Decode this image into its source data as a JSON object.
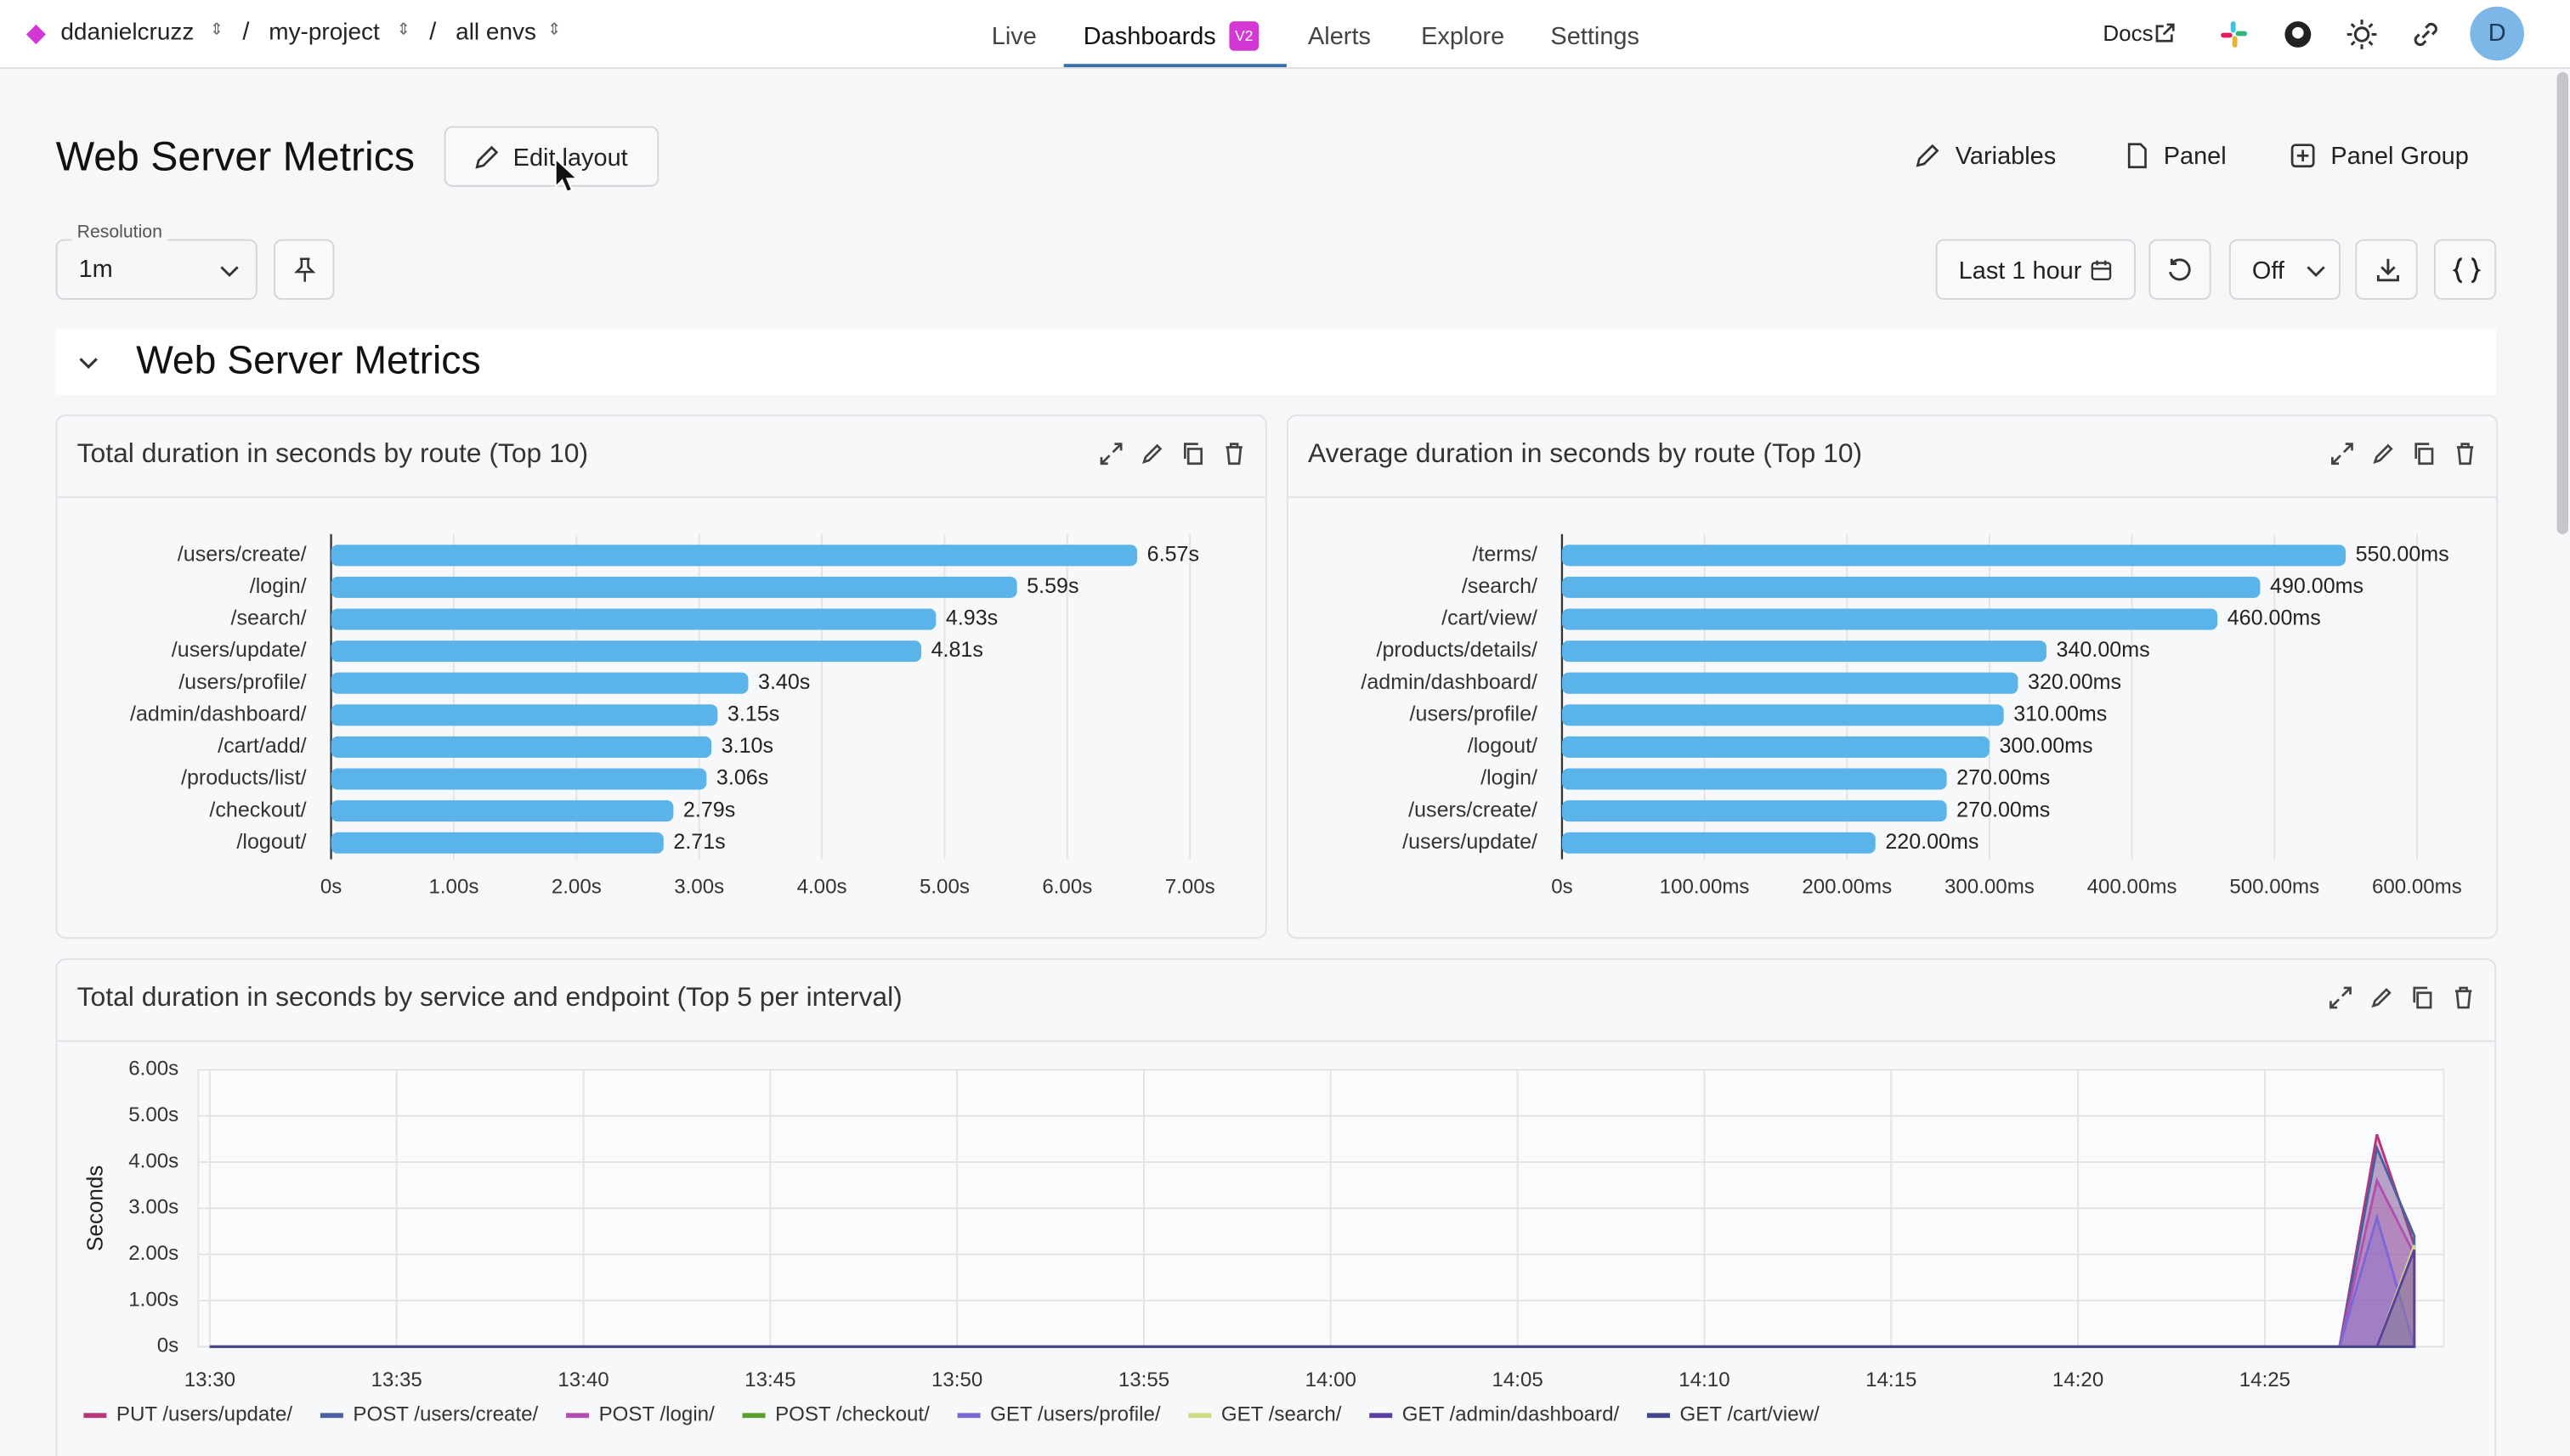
{
  "nav": {
    "org": "ddanielcruzz",
    "project": "my-project",
    "env": "all envs",
    "tabs": [
      "Live",
      "Dashboards",
      "Alerts",
      "Explore",
      "Settings"
    ],
    "badge": "V2",
    "docs": "Docs",
    "avatar": "D"
  },
  "header": {
    "title": "Web Server Metrics",
    "edit": "Edit layout",
    "actions": [
      "Variables",
      "Panel",
      "Panel Group"
    ]
  },
  "controls": {
    "resolution_label": "Resolution",
    "resolution": "1m",
    "range": "Last 1 hour",
    "refresh": "Off"
  },
  "section": {
    "title": "Web Server Metrics"
  },
  "chart_data": [
    {
      "type": "bar",
      "horizontal": true,
      "title": "Total duration in seconds by route (Top 10)",
      "categories": [
        "/users/create/",
        "/login/",
        "/search/",
        "/users/update/",
        "/users/profile/",
        "/admin/dashboard/",
        "/cart/add/",
        "/products/list/",
        "/checkout/",
        "/logout/"
      ],
      "values": [
        6.57,
        5.59,
        4.93,
        4.81,
        3.4,
        3.15,
        3.1,
        3.06,
        2.79,
        2.71
      ],
      "value_labels": [
        "6.57s",
        "5.59s",
        "4.93s",
        "4.81s",
        "3.40s",
        "3.15s",
        "3.10s",
        "3.06s",
        "2.79s",
        "2.71s"
      ],
      "color": "#5bb4e9",
      "xlim": [
        0,
        7.2
      ],
      "xticks": [
        {
          "value": 0,
          "label": "0s"
        },
        {
          "value": 1,
          "label": "1.00s"
        },
        {
          "value": 2,
          "label": "2.00s"
        },
        {
          "value": 3,
          "label": "3.00s"
        },
        {
          "value": 4,
          "label": "4.00s"
        },
        {
          "value": 5,
          "label": "5.00s"
        },
        {
          "value": 6,
          "label": "6.00s"
        },
        {
          "value": 7,
          "label": "7.00s"
        }
      ],
      "grid": true
    },
    {
      "type": "bar",
      "horizontal": true,
      "title": "Average duration in seconds by route (Top 10)",
      "categories": [
        "/terms/",
        "/search/",
        "/cart/view/",
        "/products/details/",
        "/admin/dashboard/",
        "/users/profile/",
        "/logout/",
        "/login/",
        "/users/create/",
        "/users/update/"
      ],
      "values": [
        550,
        490,
        460,
        340,
        320,
        310,
        300,
        270,
        270,
        220
      ],
      "value_labels": [
        "550.00ms",
        "490.00ms",
        "460.00ms",
        "340.00ms",
        "320.00ms",
        "310.00ms",
        "300.00ms",
        "270.00ms",
        "270.00ms",
        "220.00ms"
      ],
      "color": "#5bb4e9",
      "xlim": [
        0,
        620
      ],
      "xticks": [
        {
          "value": 0,
          "label": "0s"
        },
        {
          "value": 100,
          "label": "100.00ms"
        },
        {
          "value": 200,
          "label": "200.00ms"
        },
        {
          "value": 300,
          "label": "300.00ms"
        },
        {
          "value": 400,
          "label": "400.00ms"
        },
        {
          "value": 500,
          "label": "500.00ms"
        },
        {
          "value": 600,
          "label": "600.00ms"
        }
      ],
      "grid": true
    },
    {
      "type": "area",
      "title": "Total duration in seconds by service and endpoint (Top 5 per interval)",
      "y_label": "Seconds",
      "x": [
        "13:30",
        "14:27",
        "14:28",
        "14:29"
      ],
      "xlim": [
        "13:30",
        "14:29"
      ],
      "xticks": [
        "13:30",
        "13:35",
        "13:40",
        "13:45",
        "13:50",
        "13:55",
        "14:00",
        "14:05",
        "14:10",
        "14:15",
        "14:20",
        "14:25"
      ],
      "ylim": [
        0,
        6
      ],
      "yticks": [
        {
          "value": 0,
          "label": "0s"
        },
        {
          "value": 1,
          "label": "1.00s"
        },
        {
          "value": 2,
          "label": "2.00s"
        },
        {
          "value": 3,
          "label": "3.00s"
        },
        {
          "value": 4,
          "label": "4.00s"
        },
        {
          "value": 5,
          "label": "5.00s"
        },
        {
          "value": 6,
          "label": "6.00s"
        }
      ],
      "grid": true,
      "series": [
        {
          "name": "PUT /users/update/",
          "color": "#b8357a",
          "values": [
            0,
            0,
            4.6,
            2.2
          ]
        },
        {
          "name": "POST /users/create/",
          "color": "#4a5f9f",
          "values": [
            0,
            0,
            4.3,
            2.4
          ]
        },
        {
          "name": "POST /login/",
          "color": "#b04fb0",
          "values": [
            0,
            0,
            3.6,
            2.0
          ]
        },
        {
          "name": "POST /checkout/",
          "color": "#5aa02c",
          "values": [
            0,
            0,
            0,
            0
          ]
        },
        {
          "name": "GET /users/profile/",
          "color": "#7b68d6",
          "values": [
            0,
            0,
            2.8,
            0
          ]
        },
        {
          "name": "GET /search/",
          "color": "#cfdc87",
          "values": [
            0,
            0,
            0,
            2.2
          ]
        },
        {
          "name": "GET /admin/dashboard/",
          "color": "#5a3fa0",
          "values": [
            0,
            0,
            0,
            2.1
          ]
        },
        {
          "name": "GET /cart/view/",
          "color": "#45458a",
          "values": [
            0,
            0,
            0,
            0
          ]
        }
      ]
    }
  ]
}
